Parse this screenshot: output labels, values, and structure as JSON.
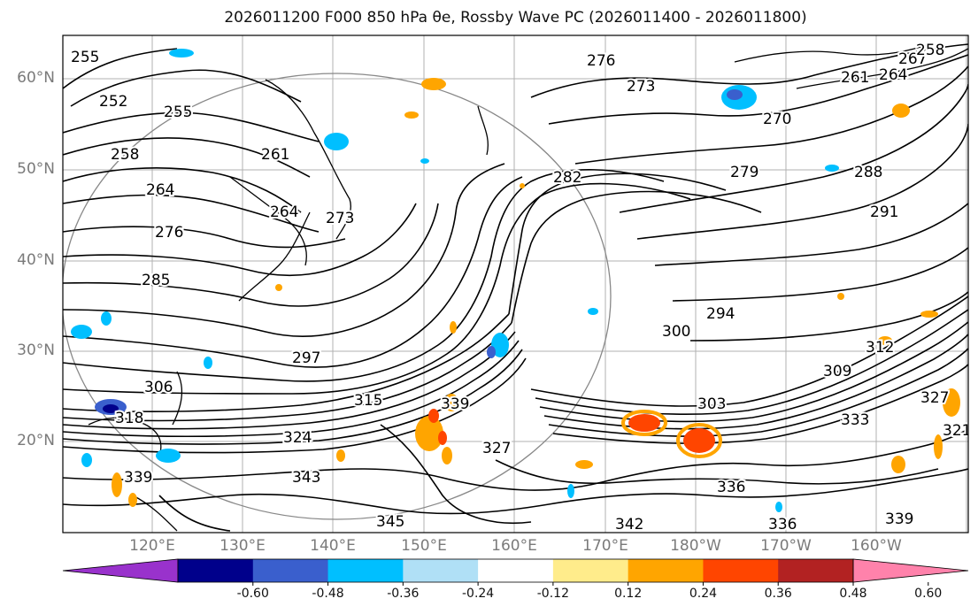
{
  "title": "2026011200 F000 850 hPa θe, Rossby Wave PC (2026011400 - 2026011800)",
  "map": {
    "lat_labels": [
      "60°N",
      "50°N",
      "40°N",
      "30°N",
      "20°N"
    ],
    "lon_labels": [
      "120°E",
      "130°E",
      "140°E",
      "150°E",
      "160°E",
      "170°E",
      "180°W",
      "170°W",
      "160°W"
    ],
    "contour_labels": [
      "255",
      "252",
      "255",
      "258",
      "264",
      "261",
      "264",
      "276",
      "273",
      "285",
      "297",
      "306",
      "318",
      "324",
      "315",
      "339",
      "339",
      "343",
      "345",
      "276",
      "273",
      "270",
      "267",
      "258",
      "264",
      "261",
      "279",
      "282",
      "288",
      "291",
      "294",
      "300",
      "309",
      "312",
      "321",
      "327",
      "303",
      "333",
      "336",
      "336",
      "339",
      "342",
      "327"
    ]
  },
  "colorbar": {
    "tick_labels": [
      "-0.60",
      "-0.48",
      "-0.36",
      "-0.24",
      "-0.12",
      "0.12",
      "0.24",
      "0.36",
      "0.48",
      "0.60"
    ],
    "colors": [
      "#9932cc",
      "#00008b",
      "#3a5fcd",
      "#00bfff",
      "#b0e0f6",
      "#ffffff",
      "#ffec8b",
      "#ffa500",
      "#ff4500",
      "#b22222",
      "#ff82ab"
    ]
  }
}
